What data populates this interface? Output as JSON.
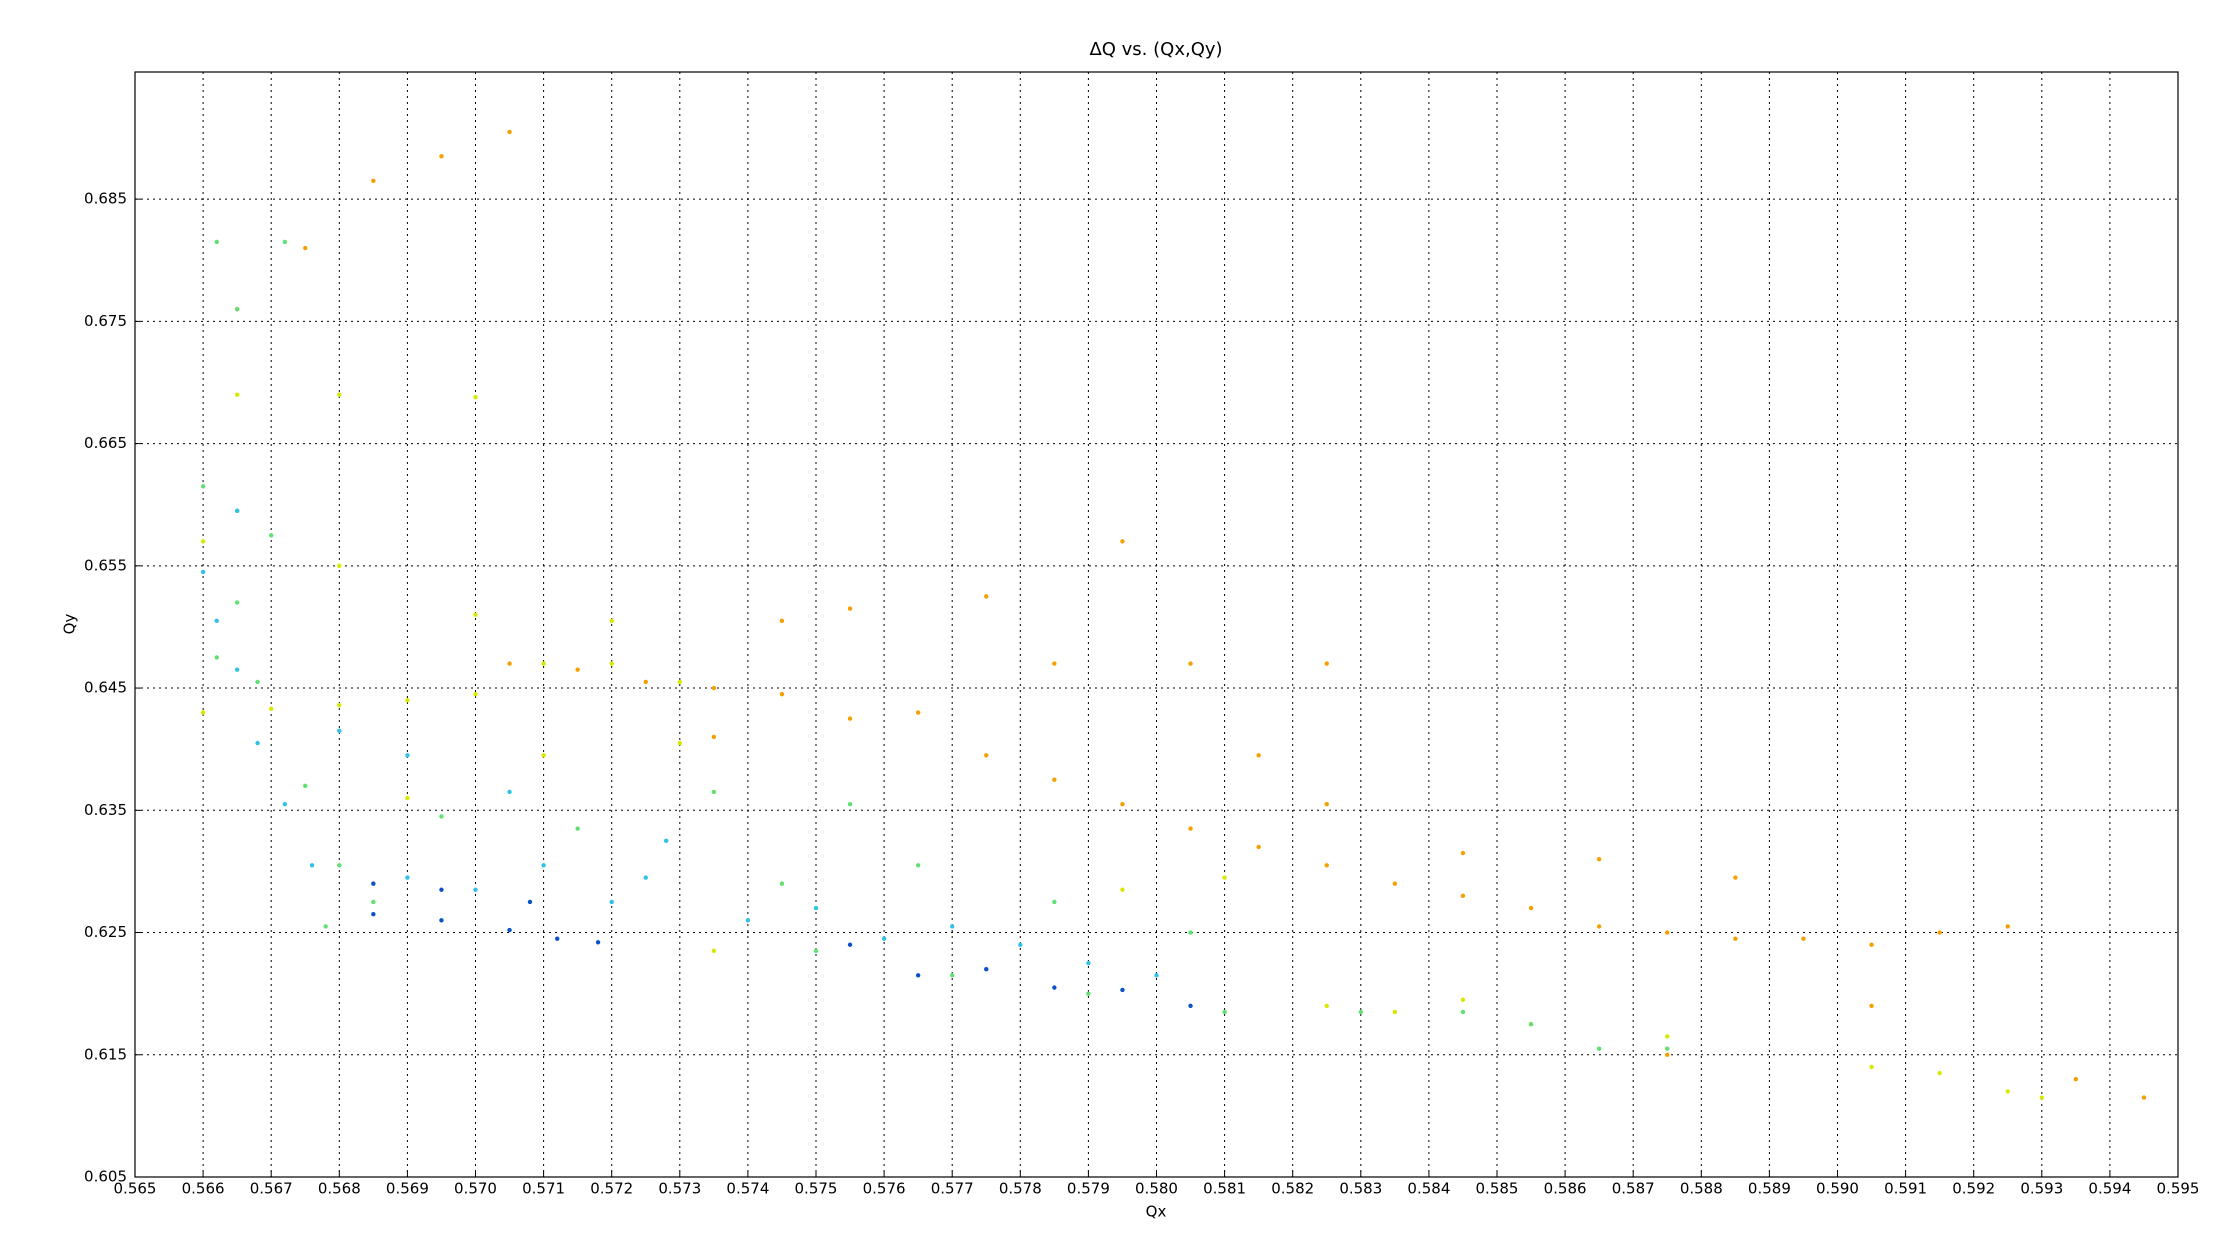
{
  "chart_data": {
    "type": "scatter",
    "title": "ΔQ vs. (Qx,Qy)",
    "xlabel": "Qx",
    "ylabel": "Qy",
    "xlim": [
      0.565,
      0.595
    ],
    "xticks": [
      0.565,
      0.566,
      0.567,
      0.568,
      0.569,
      {
        "value": 0.57,
        "label": "0.570"
      },
      0.571,
      0.572,
      0.573,
      0.574,
      0.575,
      0.576,
      0.577,
      0.578,
      0.579,
      {
        "value": 0.58,
        "label": "0.580"
      },
      0.581,
      0.582,
      0.583,
      0.584,
      0.585,
      0.586,
      0.587,
      0.588,
      0.589,
      {
        "value": 0.59,
        "label": "0.590"
      },
      0.591,
      0.592,
      0.593,
      0.594,
      0.595
    ],
    "ylim": [
      0.605,
      0.6954
    ],
    "yticks": [
      0.605,
      0.615,
      0.625,
      0.635,
      0.645,
      0.655,
      0.665,
      0.675,
      0.685
    ],
    "grid": true,
    "series": [
      {
        "color": "#f5a000",
        "x": [
          0.5705,
          0.5715,
          0.5725,
          0.5735,
          0.5745,
          0.5755,
          0.5765,
          0.5775,
          0.5785,
          0.5795,
          0.5805,
          0.5815,
          0.5825,
          0.5835,
          0.5845,
          0.5855,
          0.5865,
          0.5875,
          0.5885,
          0.5895,
          0.5905,
          0.5915,
          0.5925,
          0.5785,
          0.5805,
          0.5825,
          0.5755,
          0.5775,
          0.5685,
          0.5695,
          0.5705,
          0.5675,
          0.5665,
          0.5735,
          0.5815,
          0.5845,
          0.5885,
          0.5905,
          0.5935,
          0.5945,
          0.5875,
          0.5865,
          0.5795,
          0.5825,
          0.5745
        ],
        "values": [
          0.647,
          0.6465,
          0.6455,
          0.645,
          0.6445,
          0.6425,
          0.643,
          0.6395,
          0.6375,
          0.6355,
          0.6335,
          0.632,
          0.6305,
          0.629,
          0.628,
          0.627,
          0.6255,
          0.625,
          0.6245,
          0.6245,
          0.624,
          0.625,
          0.6255,
          0.647,
          0.647,
          0.647,
          0.6515,
          0.6525,
          0.6865,
          0.6885,
          0.6905,
          0.681,
          0.676,
          0.641,
          0.6395,
          0.6315,
          0.6295,
          0.619,
          0.613,
          0.6115,
          0.615,
          0.631,
          0.657,
          0.6355,
          0.6505
        ]
      },
      {
        "color": "#d8e800",
        "x": [
          0.566,
          0.567,
          0.568,
          0.569,
          0.57,
          0.571,
          0.572,
          0.573,
          0.5665,
          0.568,
          0.57,
          0.566,
          0.568,
          0.57,
          0.572,
          0.569,
          0.571,
          0.573,
          0.5825,
          0.5835,
          0.5855,
          0.5875,
          0.5905,
          0.5915,
          0.5925,
          0.593,
          0.5735,
          0.5795,
          0.581,
          0.5845
        ],
        "values": [
          0.643,
          0.6433,
          0.6436,
          0.644,
          0.6445,
          0.647,
          0.647,
          0.6455,
          0.669,
          0.669,
          0.6688,
          0.657,
          0.655,
          0.651,
          0.6505,
          0.636,
          0.6395,
          0.6405,
          0.619,
          0.6185,
          0.6175,
          0.6165,
          0.614,
          0.6135,
          0.612,
          0.6115,
          0.6235,
          0.6285,
          0.6295,
          0.6195
        ]
      },
      {
        "color": "#60e070",
        "x": [
          0.5662,
          0.5672,
          0.5665,
          0.566,
          0.5665,
          0.567,
          0.5665,
          0.5662,
          0.5668,
          0.5675,
          0.568,
          0.5678,
          0.5685,
          0.575,
          0.577,
          0.579,
          0.581,
          0.583,
          0.5845,
          0.5855,
          0.5865,
          0.5875,
          0.5745,
          0.5765,
          0.5785,
          0.5805,
          0.5695,
          0.5715,
          0.5735,
          0.5755
        ],
        "values": [
          0.6815,
          0.6815,
          0.676,
          0.6615,
          0.6595,
          0.6575,
          0.652,
          0.6475,
          0.6455,
          0.637,
          0.6305,
          0.6255,
          0.6275,
          0.6235,
          0.6215,
          0.62,
          0.6185,
          0.6185,
          0.6185,
          0.6175,
          0.6155,
          0.6155,
          0.629,
          0.6305,
          0.6275,
          0.625,
          0.6345,
          0.6335,
          0.6365,
          0.6355
        ]
      },
      {
        "color": "#30c0e8",
        "x": [
          0.566,
          0.5662,
          0.5665,
          0.5668,
          0.5672,
          0.5676,
          0.569,
          0.57,
          0.571,
          0.572,
          0.5725,
          0.574,
          0.575,
          0.576,
          0.577,
          0.578,
          0.579,
          0.58,
          0.5665,
          0.568,
          0.569,
          0.5705,
          0.5728
        ],
        "values": [
          0.6545,
          0.6505,
          0.6465,
          0.6405,
          0.6355,
          0.6305,
          0.6295,
          0.6285,
          0.6305,
          0.6275,
          0.6295,
          0.626,
          0.627,
          0.6245,
          0.6255,
          0.624,
          0.6225,
          0.6215,
          0.6595,
          0.6415,
          0.6395,
          0.6365,
          0.6325
        ]
      },
      {
        "color": "#0a50c8",
        "x": [
          0.5685,
          0.5695,
          0.5705,
          0.5712,
          0.5718,
          0.5708,
          0.5695,
          0.5685,
          0.5765,
          0.5785,
          0.5795,
          0.5755,
          0.5775,
          0.5805
        ],
        "values": [
          0.6265,
          0.626,
          0.6252,
          0.6245,
          0.6242,
          0.6275,
          0.6285,
          0.629,
          0.6215,
          0.6205,
          0.6203,
          0.624,
          0.622,
          0.619
        ]
      }
    ]
  }
}
